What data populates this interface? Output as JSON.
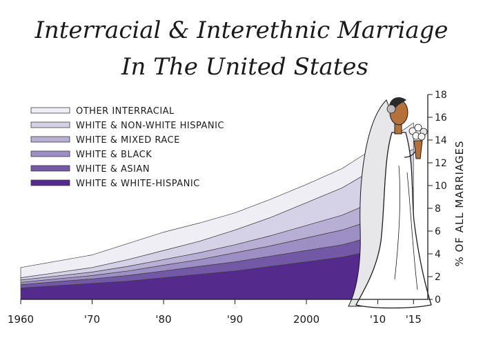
{
  "title": [
    "Interracial & Interethnic Marriage",
    "In The United States"
  ],
  "chart_data": {
    "type": "area",
    "stacked": true,
    "title": "Interracial & Interethnic Marriage In The United States",
    "ylabel": "% OF ALL MARRIAGES",
    "xlabel": "",
    "ylim": [
      0,
      18
    ],
    "xlim": [
      1960,
      2017
    ],
    "yticks": [
      "0",
      "2",
      "4",
      "6",
      "8",
      "10",
      "12",
      "14",
      "16",
      "18"
    ],
    "xticks": [
      {
        "value": 1960,
        "label": "1960"
      },
      {
        "value": 1970,
        "label": "'70"
      },
      {
        "value": 1980,
        "label": "'80"
      },
      {
        "value": 1990,
        "label": "'90"
      },
      {
        "value": 2000,
        "label": "2000"
      },
      {
        "value": 2010,
        "label": "'10"
      },
      {
        "value": 2015,
        "label": "'15"
      }
    ],
    "x": [
      1960,
      1965,
      1970,
      1975,
      1980,
      1985,
      1990,
      1995,
      2000,
      2005,
      2008,
      2010,
      2012,
      2015
    ],
    "series": [
      {
        "name": "WHITE & WHITE-HISPANIC",
        "color": "#542a8c",
        "values": [
          1.0,
          1.2,
          1.4,
          1.6,
          1.9,
          2.2,
          2.5,
          2.9,
          3.3,
          3.7,
          4.1,
          4.3,
          4.5,
          4.8
        ]
      },
      {
        "name": "WHITE & ASIAN",
        "color": "#7358a6",
        "values": [
          0.3,
          0.35,
          0.4,
          0.5,
          0.6,
          0.7,
          0.8,
          0.9,
          1.0,
          1.1,
          1.2,
          1.3,
          1.4,
          1.5
        ]
      },
      {
        "name": "WHITE & BLACK",
        "color": "#9d8ec3",
        "values": [
          0.2,
          0.25,
          0.3,
          0.4,
          0.5,
          0.6,
          0.8,
          0.9,
          1.1,
          1.3,
          1.4,
          1.5,
          1.6,
          1.7
        ]
      },
      {
        "name": "WHITE & MIXED RACE",
        "color": "#b8afd4",
        "values": [
          0.2,
          0.25,
          0.3,
          0.4,
          0.5,
          0.6,
          0.7,
          0.9,
          1.1,
          1.3,
          1.5,
          1.6,
          1.7,
          1.8
        ]
      },
      {
        "name": "WHITE & NON-WHITE HISPANIC",
        "color": "#d5d1e6",
        "values": [
          0.2,
          0.3,
          0.4,
          0.6,
          0.8,
          1.0,
          1.3,
          1.6,
          2.0,
          2.4,
          2.7,
          2.9,
          3.1,
          3.4
        ]
      },
      {
        "name": "OTHER INTERRACIAL",
        "color": "#efeef5",
        "values": [
          0.9,
          1.0,
          1.1,
          1.4,
          1.6,
          1.6,
          1.5,
          1.6,
          1.6,
          1.7,
          1.8,
          1.8,
          1.9,
          2.3
        ]
      }
    ],
    "legend_position": "top-left",
    "grid": false
  },
  "colors": {
    "skin": "#b5713a",
    "hair": "#2a2a2a",
    "veil": "#e7e7ea",
    "dress": "#ffffff",
    "outline": "#1a1a1a"
  },
  "illustration": "bride-icon"
}
